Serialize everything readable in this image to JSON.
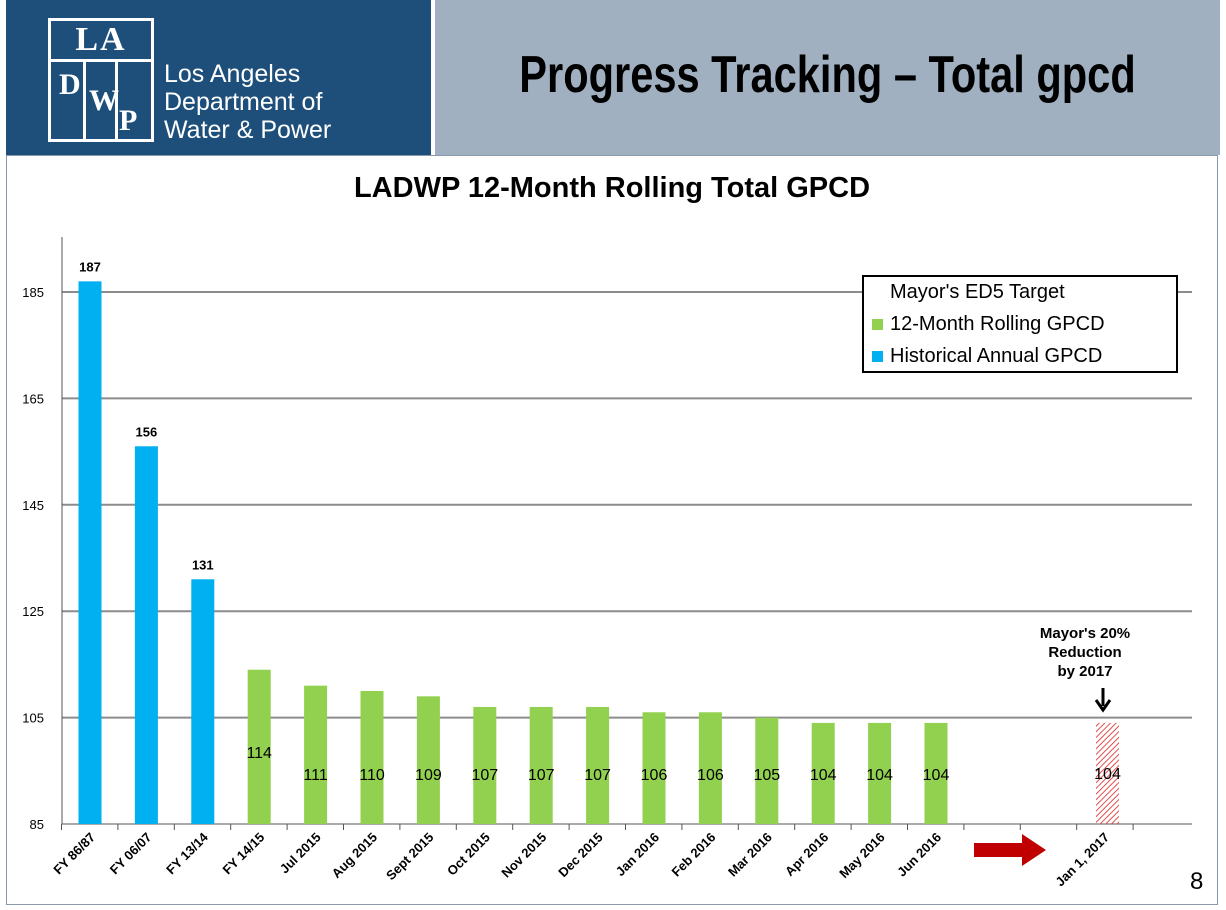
{
  "header": {
    "logo_la": "LA",
    "logo_d": "D",
    "logo_w": "W",
    "logo_p": "P",
    "org_line1": "Los Angeles",
    "org_line2": "Department of",
    "org_line3": "Water & Power",
    "title": "Progress Tracking – Total gpcd"
  },
  "colors": {
    "header_dark": "#1d4f7a",
    "header_light": "#a0b0c0",
    "historical": "#00b0f0",
    "rolling": "#92d050",
    "target": "#e05050",
    "arrow": "#c00000"
  },
  "chart_data": {
    "type": "bar",
    "title": "LADWP 12-Month Rolling Total GPCD",
    "xlabel": "",
    "ylabel": "",
    "ylim": [
      85,
      195
    ],
    "yticks": [
      85,
      105,
      125,
      145,
      165,
      185
    ],
    "grid": true,
    "legend_position": "top-right",
    "categories": [
      "FY 86/87",
      "FY 06/07",
      "FY 13/14",
      "FY 14/15",
      "Jul 2015",
      "Aug 2015",
      "Sept 2015",
      "Oct 2015",
      "Nov 2015",
      "Dec 2015",
      "Jan 2016",
      "Feb 2016",
      "Mar 2016",
      "Apr 2016",
      "May 2016",
      "Jun 2016",
      "",
      "",
      "Jan 1, 2017"
    ],
    "series": [
      {
        "name": "Historical Annual GPCD",
        "values": [
          187,
          156,
          131,
          null,
          null,
          null,
          null,
          null,
          null,
          null,
          null,
          null,
          null,
          null,
          null,
          null,
          null,
          null,
          null
        ]
      },
      {
        "name": "12-Month Rolling GPCD",
        "values": [
          null,
          null,
          null,
          114,
          111,
          110,
          109,
          107,
          107,
          107,
          106,
          106,
          105,
          104,
          104,
          104,
          null,
          null,
          null
        ]
      },
      {
        "name": "Mayor's ED5 Target",
        "values": [
          null,
          null,
          null,
          null,
          null,
          null,
          null,
          null,
          null,
          null,
          null,
          null,
          null,
          null,
          null,
          null,
          null,
          null,
          104
        ]
      }
    ],
    "legend": [
      "Mayor's ED5 Target",
      "12-Month Rolling GPCD",
      "Historical Annual GPCD"
    ],
    "annotation": "Mayor's 20% Reduction by 2017"
  },
  "annotation_lines": [
    "Mayor's 20%",
    "Reduction",
    "by 2017"
  ],
  "page_number": "8"
}
